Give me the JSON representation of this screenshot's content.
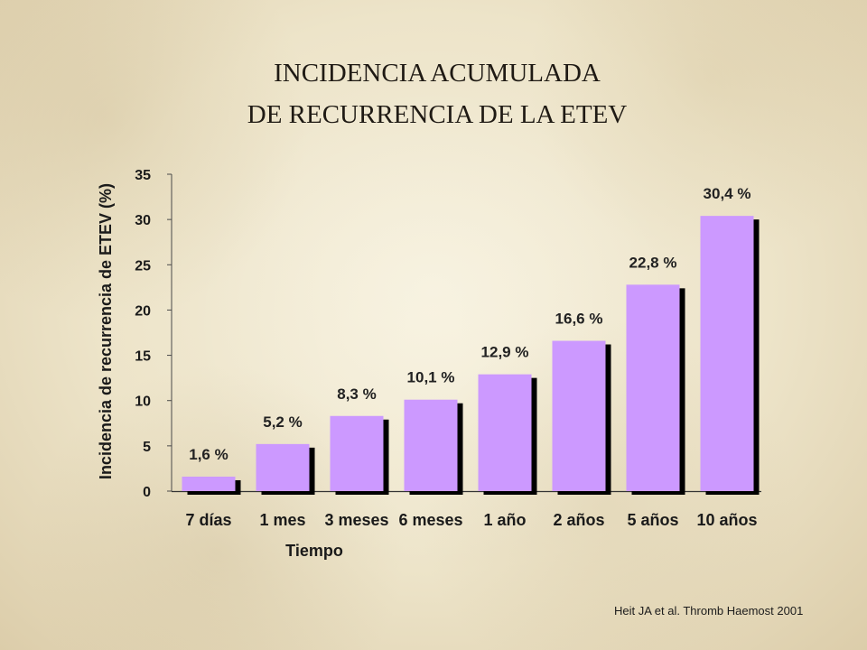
{
  "slide": {
    "citation": "Heit JA et al. Thromb Haemost 2001"
  },
  "colors": {
    "bar": "#cc99ff",
    "bar_shadow": "#000000",
    "text": "#1a1a1a",
    "background": "#ede4c9"
  },
  "chart_data": {
    "type": "bar",
    "title": [
      "INCIDENCIA ACUMULADA",
      "DE RECURRENCIA DE LA ETEV"
    ],
    "categories": [
      "7 días",
      "1 mes",
      "3 meses",
      "6 meses",
      "1 año",
      "2 años",
      "5 años",
      "10 años"
    ],
    "values": [
      1.6,
      5.2,
      8.3,
      10.1,
      12.9,
      16.6,
      22.8,
      30.4
    ],
    "data_labels": [
      "1,6 %",
      "5,2 %",
      "8,3 %",
      "10,1 %",
      "12,9 %",
      "16,6 %",
      "22,8 %",
      "30,4 %"
    ],
    "xlabel": "Tiempo",
    "ylabel": "Incidencia de recurrencia de ETEV (%)",
    "ylim": [
      0,
      35
    ],
    "yticks": [
      0,
      5,
      10,
      15,
      20,
      25,
      30,
      35
    ],
    "grid": false,
    "legend": "none"
  }
}
